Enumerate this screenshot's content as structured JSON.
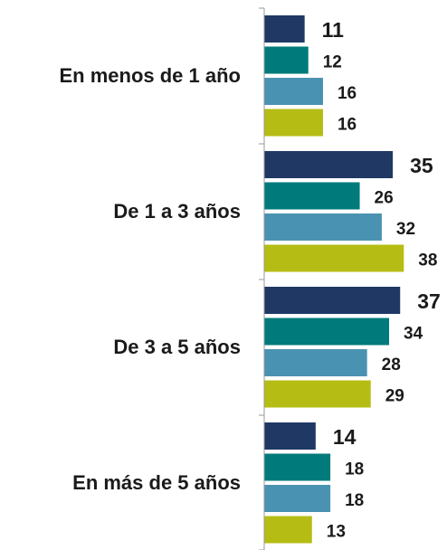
{
  "chart_data": {
    "type": "bar",
    "orientation": "horizontal",
    "categories": [
      "En menos de 1 año",
      "De 1 a 3 años",
      "De 3 a 5 años",
      "En más de 5 años"
    ],
    "series": [
      {
        "color": "#1f3864",
        "values": [
          11,
          35,
          37,
          14
        ]
      },
      {
        "color": "#007a7a",
        "values": [
          12,
          26,
          34,
          18
        ]
      },
      {
        "color": "#4a92b2",
        "values": [
          16,
          32,
          28,
          18
        ]
      },
      {
        "color": "#b5bd14",
        "values": [
          16,
          38,
          29,
          13
        ]
      }
    ],
    "xlim": [
      0,
      50
    ]
  }
}
